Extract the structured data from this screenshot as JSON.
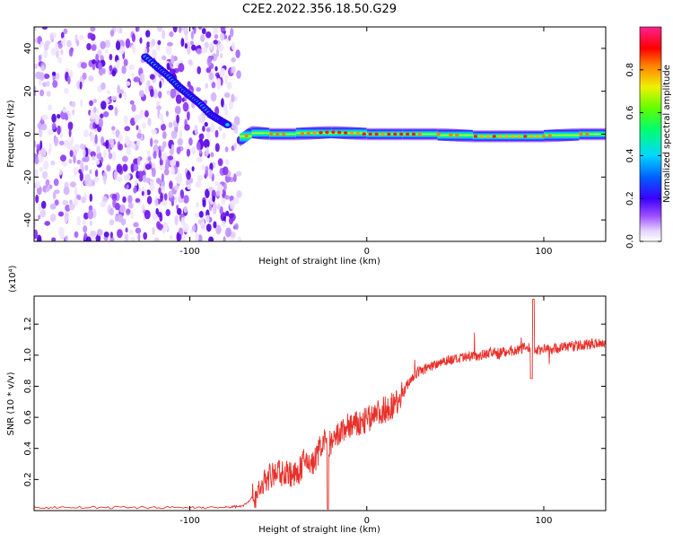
{
  "title": "C2E2.2022.356.18.50.G29",
  "colorbar": {
    "label": "Normalized spectral amplitude",
    "ticks": [
      "0.0",
      "0.2",
      "0.4",
      "0.6",
      "0.8"
    ],
    "tick_values": [
      0.0,
      0.2,
      0.4,
      0.6,
      0.8
    ],
    "range": [
      0,
      1
    ],
    "colormap": [
      "#ffffff",
      "#d6b8ff",
      "#8a2be2",
      "#3b00ff",
      "#0050ff",
      "#00d0ff",
      "#00ff40",
      "#d0ff00",
      "#ff9000",
      "#ff0000",
      "#ff0060",
      "#ff2080"
    ]
  },
  "chart_data": [
    {
      "type": "heatmap",
      "xlabel": "Height of straight line (km)",
      "ylabel": "Frequency (Hz)",
      "xlim": [
        -188,
        135
      ],
      "ylim": [
        -50,
        50
      ],
      "xticks": [
        -100,
        0,
        100
      ],
      "xtick_labels": [
        "-100",
        "0",
        "100"
      ],
      "yticks": [
        -40,
        -20,
        0,
        20,
        40
      ],
      "ytick_labels": [
        "-40",
        "-20",
        "0",
        "20",
        "40"
      ],
      "noise_region_x": [
        -188,
        -72
      ],
      "diagonal_feature": {
        "x": [
          -125,
          -118,
          -112,
          -106,
          -100,
          -94,
          -88,
          -82,
          -78
        ],
        "y": [
          36,
          31,
          27,
          22,
          18,
          14,
          9,
          6,
          4
        ]
      },
      "doppler_line": {
        "x": [
          -72,
          -65,
          -55,
          -40,
          -20,
          0,
          20,
          40,
          60,
          80,
          100,
          120,
          135
        ],
        "y": [
          -3,
          1,
          0,
          0,
          1,
          0,
          0,
          0,
          -1,
          -1,
          -1,
          0,
          0
        ]
      }
    },
    {
      "type": "line",
      "xlabel": "Height of straight line (km)",
      "ylabel": "SNR (10 * v/v)",
      "y_multiplier": "(x10⁴)",
      "xlim": [
        -188,
        135
      ],
      "ylim": [
        0,
        1.38
      ],
      "xticks": [
        -100,
        0,
        100
      ],
      "xtick_labels": [
        "-100",
        "0",
        "100"
      ],
      "yticks": [
        0.2,
        0.4,
        0.6,
        0.8,
        1.0,
        1.2
      ],
      "ytick_labels": [
        "0.2",
        "0.4",
        "0.6",
        "0.8",
        "1.0",
        "1.2"
      ],
      "series": [
        {
          "color": "#e8302a",
          "x": [
            -188,
            -160,
            -130,
            -100,
            -80,
            -70,
            -63,
            -57,
            -50,
            -45,
            -40,
            -35,
            -30,
            -25,
            -20,
            -15,
            -10,
            -5,
            0,
            5,
            10,
            15,
            20,
            25,
            30,
            35,
            40,
            45,
            50,
            55,
            60,
            65,
            70,
            75,
            80,
            85,
            90,
            95,
            100,
            105,
            110,
            115,
            120,
            125,
            130,
            135
          ],
          "y": [
            0.02,
            0.02,
            0.02,
            0.02,
            0.02,
            0.03,
            0.1,
            0.2,
            0.25,
            0.25,
            0.22,
            0.32,
            0.3,
            0.45,
            0.42,
            0.5,
            0.55,
            0.55,
            0.58,
            0.62,
            0.65,
            0.68,
            0.75,
            0.85,
            0.9,
            0.92,
            0.95,
            0.97,
            0.97,
            0.98,
            1.0,
            1.0,
            1.02,
            1.01,
            1.03,
            1.03,
            1.05,
            1.03,
            1.04,
            1.04,
            1.05,
            1.06,
            1.06,
            1.07,
            1.08,
            1.08
          ]
        }
      ]
    }
  ]
}
